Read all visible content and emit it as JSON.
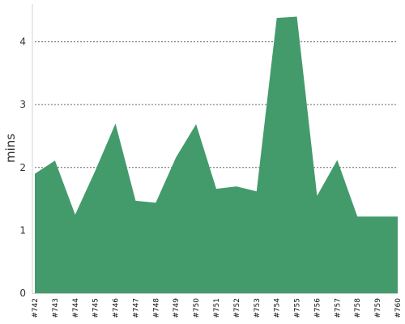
{
  "colors": {
    "area": "#439b6b",
    "grid": "#666666",
    "axis": "#d3d3d3",
    "text": "#333333"
  },
  "chart_data": {
    "type": "area",
    "ylabel": "mins",
    "xlabel": "",
    "title": "",
    "ylim": [
      0,
      4.6
    ],
    "yticks": [
      0,
      1,
      2,
      3,
      4
    ],
    "grid": "horizontal dotted",
    "legend": "none",
    "categories": [
      "#742",
      "#743",
      "#744",
      "#745",
      "#746",
      "#747",
      "#748",
      "#749",
      "#750",
      "#751",
      "#752",
      "#753",
      "#754",
      "#755",
      "#756",
      "#757",
      "#758",
      "#759",
      "#760"
    ],
    "series": [
      {
        "values": [
          1.9,
          2.11,
          1.25,
          1.95,
          2.7,
          1.47,
          1.44,
          2.16,
          2.69,
          1.66,
          1.7,
          1.62,
          4.38,
          4.4,
          1.55,
          2.12,
          1.22,
          1.22,
          1.22
        ]
      }
    ]
  }
}
